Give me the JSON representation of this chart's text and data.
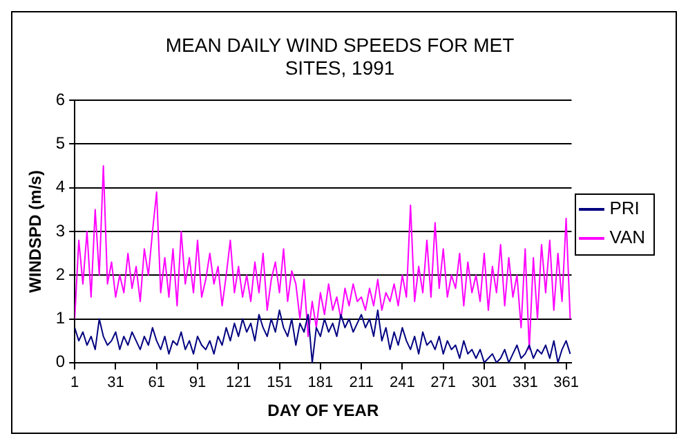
{
  "chart_data": {
    "type": "line",
    "title": "MEAN DAILY WIND SPEEDS FOR MET SITES, 1991",
    "xlabel": "DAY OF YEAR",
    "ylabel": "WINDSPD (m/s)",
    "x": [
      1,
      4,
      7,
      10,
      13,
      16,
      19,
      22,
      25,
      28,
      31,
      34,
      37,
      40,
      43,
      46,
      49,
      52,
      55,
      58,
      61,
      64,
      67,
      70,
      73,
      76,
      79,
      82,
      85,
      88,
      91,
      94,
      97,
      100,
      103,
      106,
      109,
      112,
      115,
      118,
      121,
      124,
      127,
      130,
      133,
      136,
      139,
      142,
      145,
      148,
      151,
      154,
      157,
      160,
      163,
      166,
      169,
      172,
      175,
      178,
      181,
      184,
      187,
      190,
      193,
      196,
      199,
      202,
      205,
      208,
      211,
      214,
      217,
      220,
      223,
      226,
      229,
      232,
      235,
      238,
      241,
      244,
      247,
      250,
      253,
      256,
      259,
      262,
      265,
      268,
      271,
      274,
      277,
      280,
      283,
      286,
      289,
      292,
      295,
      298,
      301,
      304,
      307,
      310,
      313,
      316,
      319,
      322,
      325,
      328,
      331,
      334,
      337,
      340,
      343,
      346,
      349,
      352,
      355,
      358,
      361,
      364
    ],
    "series": [
      {
        "name": "PRI",
        "color": "#000080",
        "values": [
          0.8,
          0.5,
          0.7,
          0.4,
          0.6,
          0.3,
          1.0,
          0.6,
          0.4,
          0.5,
          0.7,
          0.3,
          0.6,
          0.4,
          0.7,
          0.5,
          0.3,
          0.6,
          0.4,
          0.8,
          0.5,
          0.3,
          0.6,
          0.2,
          0.5,
          0.4,
          0.7,
          0.3,
          0.5,
          0.2,
          0.6,
          0.4,
          0.3,
          0.5,
          0.2,
          0.6,
          0.4,
          0.8,
          0.5,
          0.9,
          0.6,
          1.0,
          0.7,
          0.9,
          0.5,
          1.1,
          0.8,
          0.6,
          1.0,
          0.7,
          1.2,
          0.8,
          0.6,
          1.0,
          0.4,
          0.9,
          0.7,
          1.1,
          0.0,
          0.8,
          0.6,
          1.0,
          0.7,
          0.9,
          0.6,
          1.1,
          0.8,
          1.0,
          0.7,
          0.9,
          1.1,
          0.8,
          1.0,
          0.6,
          1.2,
          0.5,
          0.8,
          0.3,
          0.7,
          0.4,
          0.8,
          0.5,
          0.3,
          0.6,
          0.2,
          0.7,
          0.4,
          0.5,
          0.3,
          0.6,
          0.2,
          0.5,
          0.3,
          0.4,
          0.1,
          0.5,
          0.2,
          0.3,
          0.1,
          0.3,
          0.0,
          0.1,
          0.2,
          0.0,
          0.1,
          0.3,
          0.0,
          0.2,
          0.4,
          0.1,
          0.2,
          0.4,
          0.1,
          0.3,
          0.2,
          0.4,
          0.1,
          0.5,
          0.0,
          0.3,
          0.5,
          0.2
        ]
      },
      {
        "name": "VAN",
        "color": "#ff00ff",
        "values": [
          1.0,
          2.8,
          1.8,
          3.0,
          1.5,
          3.5,
          2.0,
          4.5,
          1.8,
          2.3,
          1.5,
          2.0,
          1.6,
          2.5,
          1.7,
          2.2,
          1.4,
          2.6,
          2.0,
          3.0,
          3.9,
          1.6,
          2.4,
          1.5,
          2.6,
          1.3,
          3.0,
          1.8,
          2.4,
          1.6,
          2.8,
          1.5,
          1.9,
          2.5,
          1.8,
          2.2,
          1.3,
          2.0,
          2.8,
          1.6,
          2.2,
          1.5,
          2.0,
          1.4,
          2.3,
          1.6,
          2.5,
          1.2,
          1.9,
          2.3,
          1.6,
          2.6,
          1.4,
          2.1,
          1.8,
          1.0,
          1.9,
          0.6,
          1.4,
          0.8,
          1.6,
          1.1,
          1.8,
          1.2,
          1.5,
          1.0,
          1.7,
          1.3,
          1.8,
          1.4,
          1.5,
          1.2,
          1.7,
          1.3,
          1.9,
          1.2,
          1.6,
          1.4,
          1.8,
          1.3,
          2.0,
          1.5,
          3.6,
          1.4,
          2.2,
          1.6,
          2.8,
          1.5,
          3.2,
          1.7,
          2.6,
          1.5,
          2.0,
          1.7,
          2.5,
          1.3,
          2.3,
          1.6,
          2.0,
          1.4,
          2.5,
          1.2,
          2.2,
          1.6,
          2.7,
          1.3,
          2.4,
          1.5,
          2.0,
          0.8,
          2.6,
          0.3,
          2.4,
          1.0,
          2.7,
          1.6,
          2.8,
          1.2,
          2.5,
          1.4,
          3.3,
          1.0
        ]
      }
    ],
    "xlim": [
      1,
      365
    ],
    "xticks": [
      1,
      31,
      61,
      91,
      121,
      151,
      181,
      211,
      241,
      271,
      301,
      331,
      361
    ],
    "ylim": [
      0,
      6
    ],
    "yticks": [
      0,
      1,
      2,
      3,
      4,
      5,
      6
    ],
    "grid": "y",
    "legend": "right",
    "marker": "none",
    "line_style": "solid"
  }
}
